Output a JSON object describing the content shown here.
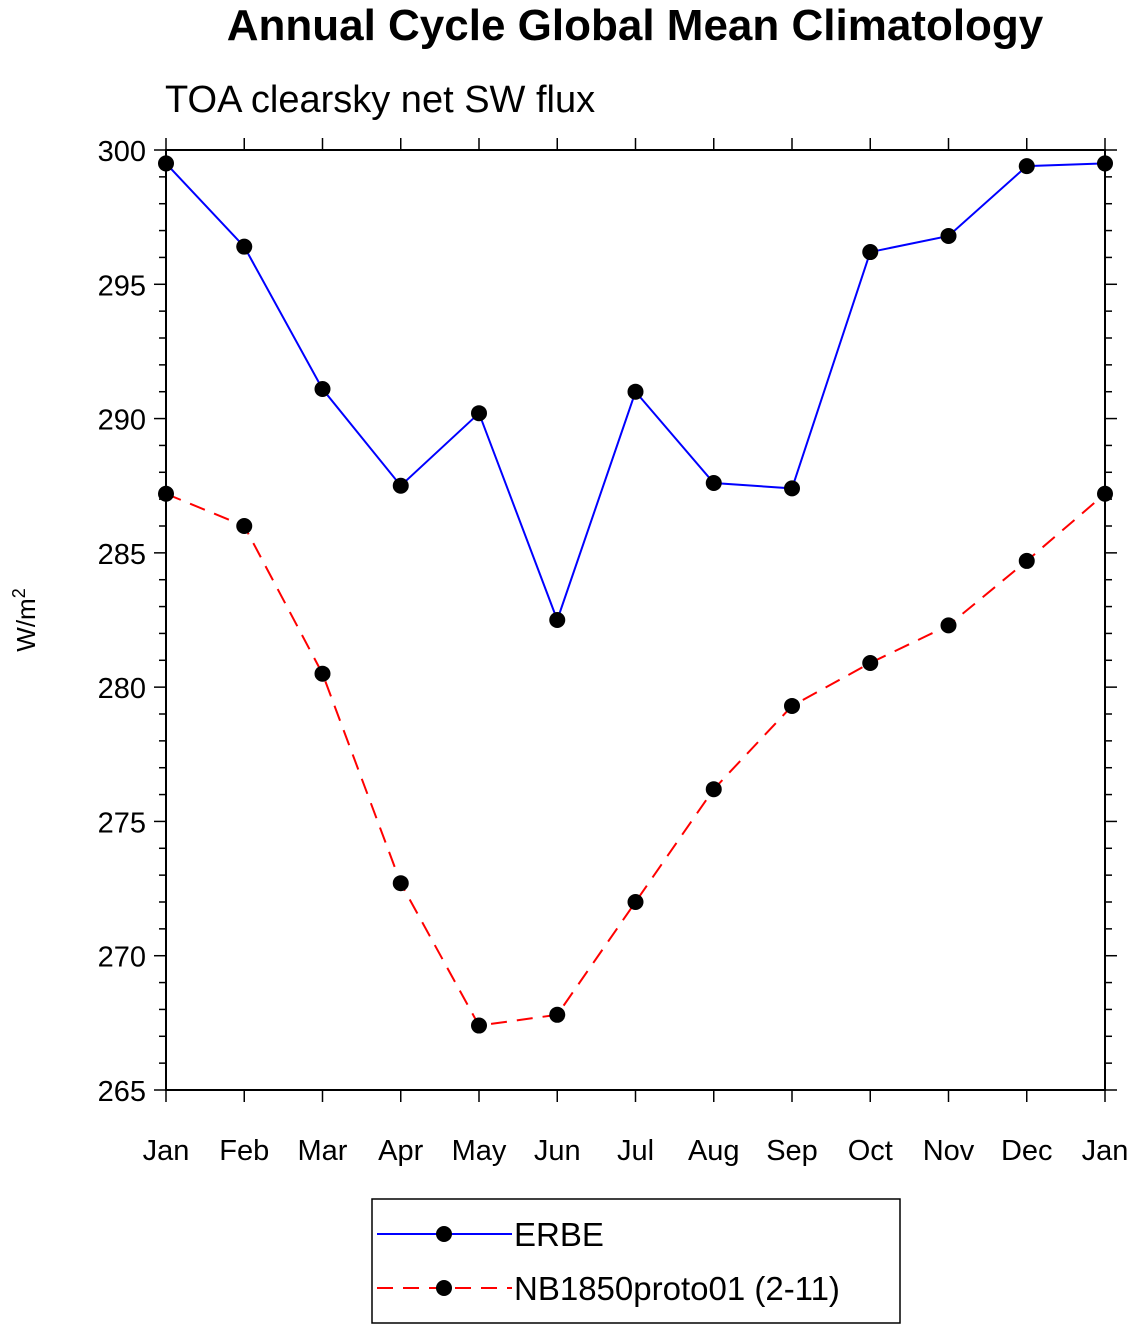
{
  "chart_data": {
    "type": "line",
    "title": "Annual Cycle Global Mean Climatology",
    "subtitle": "TOA clearsky net SW flux",
    "xlabel": "",
    "ylabel": "W/m",
    "ylabel_superscript": "2",
    "categories": [
      "Jan",
      "Feb",
      "Mar",
      "Apr",
      "May",
      "Jun",
      "Jul",
      "Aug",
      "Sep",
      "Oct",
      "Nov",
      "Dec",
      "Jan"
    ],
    "ylim": [
      265,
      300
    ],
    "yticks": [
      "300",
      "295",
      "290",
      "285",
      "280",
      "275",
      "270",
      "265"
    ],
    "grid": false,
    "legend_position": "bottom-center",
    "series": [
      {
        "name": "ERBE",
        "color": "#0000ff",
        "style": "solid",
        "values": [
          299.5,
          296.4,
          291.1,
          287.5,
          290.2,
          282.5,
          291.0,
          287.6,
          287.4,
          296.2,
          296.8,
          299.4,
          299.5
        ]
      },
      {
        "name": "NB1850proto01 (2-11)",
        "color": "#ff0000",
        "style": "dashed",
        "values": [
          287.2,
          286.0,
          280.5,
          272.7,
          267.4,
          267.8,
          272.0,
          276.2,
          279.3,
          280.9,
          282.3,
          284.7,
          287.2
        ]
      }
    ]
  }
}
